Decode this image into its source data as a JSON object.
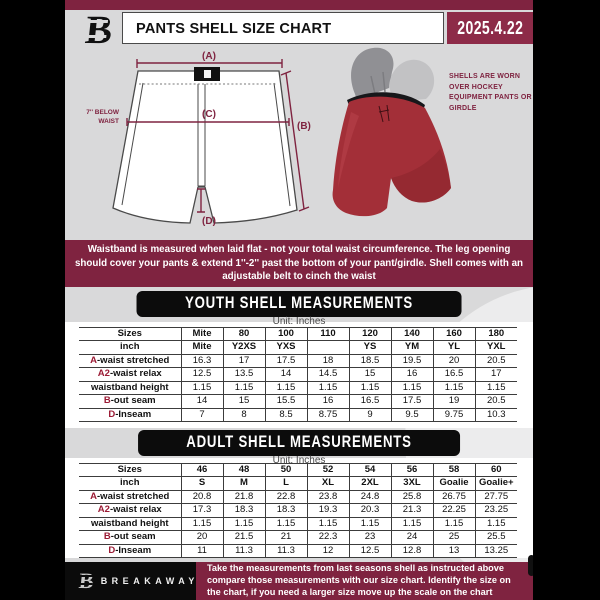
{
  "colors": {
    "maroon": "#7f2340",
    "maroon_bright": "#8d2b48",
    "page_bg": "#d9d9da",
    "shell_red": "#a32f38",
    "girdle_gray": "#97979b",
    "banner_black": "#0c0c0c"
  },
  "header": {
    "logo": "B",
    "title": "PANTS SHELL SIZE CHART",
    "date": "2025.4.22"
  },
  "diagram": {
    "label_a": "(A)",
    "label_b": "(B)",
    "label_c": "(C)",
    "label_d": "(D)",
    "waist_note": "7'' BELOW WAIST",
    "shell_note": "SHELLS ARE WORN OVER HOCKEY EQUIPMENT PANTS OR GIRDLE"
  },
  "notice": "Waistband is measured when laid flat - not your total waist circumference. The leg opening should cover your pants & extend 1''-2'' past the bottom of your pant/girdle. Shell comes with an adjustable belt to cinch the waist",
  "youth_section": {
    "banner": "YOUTH SHELL MEASUREMENTS",
    "unit": "Unit: Inches",
    "rows": [
      {
        "prefix": "",
        "label": "Sizes",
        "bold_values": true,
        "values": [
          "Mite",
          "80",
          "100",
          "110",
          "120",
          "140",
          "160",
          "180"
        ]
      },
      {
        "prefix": "",
        "label": "inch",
        "bold_values": true,
        "values": [
          "Mite",
          "Y2XS",
          "YXS",
          "",
          "YS",
          "YM",
          "YL",
          "YXL"
        ]
      },
      {
        "prefix": "A",
        "label": "-waist stretched",
        "bold_values": false,
        "values": [
          "16.3",
          "17",
          "17.5",
          "18",
          "18.5",
          "19.5",
          "20",
          "20.5"
        ]
      },
      {
        "prefix": "A2",
        "label": "-waist relax",
        "bold_values": false,
        "values": [
          "12.5",
          "13.5",
          "14",
          "14.5",
          "15",
          "16",
          "16.5",
          "17"
        ]
      },
      {
        "prefix": "",
        "label": "waistband height",
        "bold_values": false,
        "values": [
          "1.15",
          "1.15",
          "1.15",
          "1.15",
          "1.15",
          "1.15",
          "1.15",
          "1.15"
        ]
      },
      {
        "prefix": "B",
        "label": "-out seam",
        "bold_values": false,
        "values": [
          "14",
          "15",
          "15.5",
          "16",
          "16.5",
          "17.5",
          "19",
          "20.5"
        ]
      },
      {
        "prefix": "D",
        "label": "-Inseam",
        "bold_values": false,
        "values": [
          "7",
          "8",
          "8.5",
          "8.75",
          "9",
          "9.5",
          "9.75",
          "10.3"
        ]
      }
    ]
  },
  "adult_section": {
    "banner": "ADULT SHELL MEASUREMENTS",
    "unit": "Unit: Inches",
    "rows": [
      {
        "prefix": "",
        "label": "Sizes",
        "bold_values": true,
        "values": [
          "46",
          "48",
          "50",
          "52",
          "54",
          "56",
          "58",
          "60"
        ]
      },
      {
        "prefix": "",
        "label": "inch",
        "bold_values": true,
        "values": [
          "S",
          "M",
          "L",
          "XL",
          "2XL",
          "3XL",
          "Goalie",
          "Goalie+"
        ]
      },
      {
        "prefix": "A",
        "label": "-waist stretched",
        "bold_values": false,
        "values": [
          "20.8",
          "21.8",
          "22.8",
          "23.8",
          "24.8",
          "25.8",
          "26.75",
          "27.75"
        ]
      },
      {
        "prefix": "A2",
        "label": "-waist relax",
        "bold_values": false,
        "values": [
          "17.3",
          "18.3",
          "18.3",
          "19.3",
          "20.3",
          "21.3",
          "22.25",
          "23.25"
        ]
      },
      {
        "prefix": "",
        "label": "waistband height",
        "bold_values": false,
        "values": [
          "1.15",
          "1.15",
          "1.15",
          "1.15",
          "1.15",
          "1.15",
          "1.15",
          "1.15"
        ]
      },
      {
        "prefix": "B",
        "label": "-out seam",
        "bold_values": false,
        "values": [
          "20",
          "21.5",
          "21",
          "22.3",
          "23",
          "24",
          "25",
          "25.5"
        ]
      },
      {
        "prefix": "D",
        "label": "-Inseam",
        "bold_values": false,
        "values": [
          "11",
          "11.3",
          "11.3",
          "12",
          "12.5",
          "12.8",
          "13",
          "13.25"
        ]
      }
    ]
  },
  "footer": {
    "brand": "BREAKAWAY",
    "note": "Take the measurements from last seasons shell as instructed above compare those measurements  with our size chart. Identify the size on the chart, if you need a larger size move up the scale on the chart"
  }
}
